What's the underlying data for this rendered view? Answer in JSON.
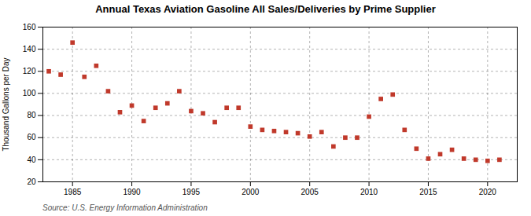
{
  "chart_data": {
    "type": "scatter",
    "title": "Annual Texas Aviation Gasoline All Sales/Deliveries by Prime Supplier",
    "ylabel": "Thousand Gallons per Day",
    "annotation": "Source: U.S. Energy Information Administration",
    "x": [
      1983,
      1984,
      1985,
      1986,
      1987,
      1988,
      1989,
      1990,
      1991,
      1992,
      1993,
      1994,
      1995,
      1996,
      1997,
      1998,
      1999,
      2000,
      2001,
      2002,
      2003,
      2004,
      2005,
      2006,
      2007,
      2008,
      2009,
      2010,
      2011,
      2012,
      2013,
      2014,
      2015,
      2016,
      2017,
      2018,
      2019,
      2020,
      2021
    ],
    "values": [
      120,
      117,
      146,
      115,
      125,
      102,
      83,
      89,
      75,
      87,
      91,
      102,
      84,
      82,
      74,
      87,
      87,
      70,
      67,
      66,
      65,
      64,
      61,
      65,
      52,
      60,
      60,
      79,
      95,
      99,
      67,
      50,
      41,
      45,
      49,
      41,
      40,
      39,
      40
    ],
    "color": "#c0392b",
    "marker": "square",
    "xlim": [
      1982.5,
      2022.5
    ],
    "xticks": [
      1985,
      1990,
      1995,
      2000,
      2005,
      2010,
      2015,
      2020
    ],
    "ylim": [
      20,
      160
    ],
    "yticks": [
      20,
      40,
      60,
      80,
      100,
      120,
      140,
      160
    ],
    "grid": true
  }
}
